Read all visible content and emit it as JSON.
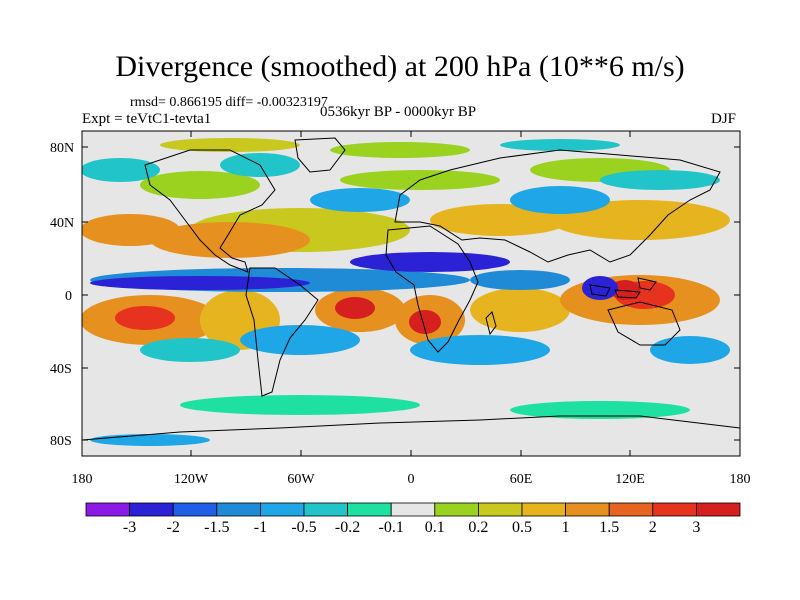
{
  "header": {
    "title": "Divergence (smoothed) at 200 hPa (10**6 m/s)",
    "stats": "rmsd= 0.866195 diff= -0.00323197",
    "experiment": "Expt = teVtC1-tevta1",
    "period": "0536kyr BP - 0000kyr BP",
    "season": "DJF"
  },
  "axes": {
    "y_ticks": [
      "80N",
      "40N",
      "0",
      "40S",
      "80S"
    ],
    "x_ticks": [
      "180",
      "120W",
      "60W",
      "0",
      "60E",
      "120E",
      "180"
    ]
  },
  "colorbar": {
    "colors": [
      "#8c1ae6",
      "#2b22d6",
      "#1f5fe6",
      "#1f8ad6",
      "#1fa6e6",
      "#21c4c8",
      "#1ee0a0",
      "#e6e6e6",
      "#9ad21f",
      "#c8c81f",
      "#e6b41f",
      "#e6911f",
      "#e6641f",
      "#e6321f",
      "#d61f1f"
    ],
    "labels": [
      "-3",
      "-2",
      "-1.5",
      "-1",
      "-0.5",
      "-0.2",
      "-0.1",
      "0.1",
      "0.2",
      "0.5",
      "1",
      "1.5",
      "2",
      "3"
    ]
  },
  "chart_data": {
    "type": "heatmap",
    "projection": "cylindrical equidistant",
    "title": "Divergence (smoothed) at 200 hPa (10**6 m/s)",
    "variable": "200 hPa divergence difference",
    "units": "10**6 m/s",
    "lon_range": [
      -180,
      180
    ],
    "lat_range": [
      -90,
      90
    ],
    "levels": [
      -3,
      -2,
      -1.5,
      -1,
      -0.5,
      -0.2,
      -0.1,
      0.1,
      0.2,
      0.5,
      1,
      1.5,
      2,
      3
    ],
    "features": [
      {
        "name": "tropical-convergence-band",
        "region": "central-east Pacific to Africa, ~0-10N",
        "value": -2
      },
      {
        "name": "maritime-continent-divergence",
        "region": "Indonesia / W Pacific",
        "value": 2
      },
      {
        "name": "south-atlantic-divergence",
        "region": "S Atlantic / SW Africa",
        "value": 2
      },
      {
        "name": "south-pacific-divergence",
        "region": "SW Pacific near 150W",
        "value": 1.5
      }
    ]
  }
}
